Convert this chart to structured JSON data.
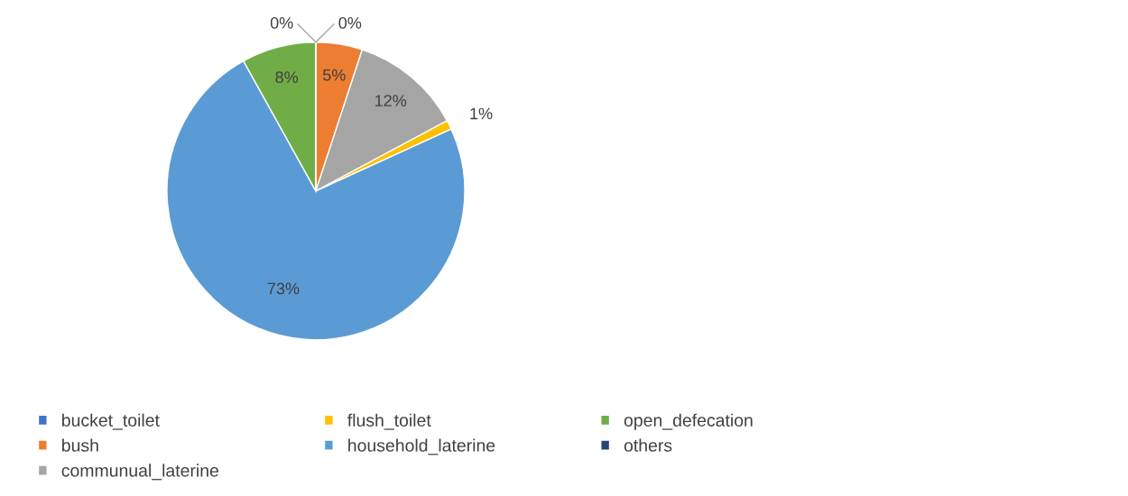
{
  "chart_data": {
    "type": "pie",
    "categories": [
      "bucket_toilet",
      "bush",
      "communual_laterine",
      "flush_toilet",
      "household_laterine",
      "open_defecation",
      "others"
    ],
    "values": [
      0,
      5,
      12,
      1,
      73,
      8,
      0
    ],
    "value_labels": [
      "0%",
      "5%",
      "12%",
      "1%",
      "73%",
      "8%",
      "0%"
    ],
    "colors": [
      "#4472c4",
      "#ed7d31",
      "#a5a5a5",
      "#ffc000",
      "#5b9bd5",
      "#70ad47",
      "#264478"
    ],
    "legend": "bottom"
  }
}
